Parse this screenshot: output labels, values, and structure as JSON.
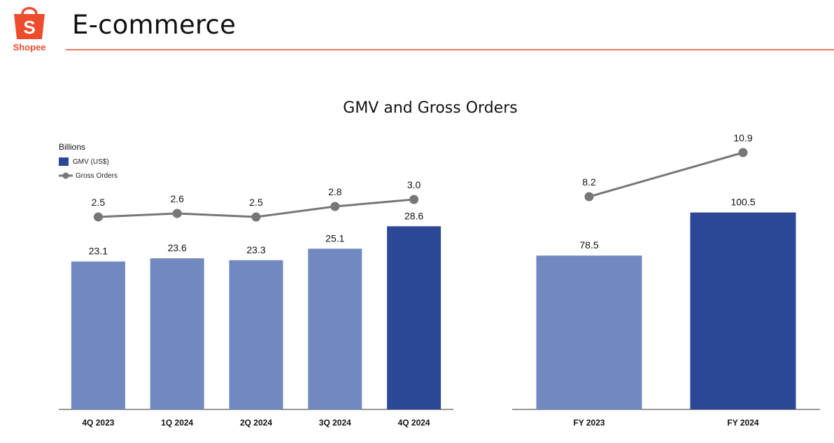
{
  "header": {
    "title": "E-commerce",
    "logo_text": "Shopee",
    "logo_glyph": "S",
    "logo_icon": "shopping-bag-icon"
  },
  "colors": {
    "brand": "#ee4d2d",
    "bar_light": "#7189c0",
    "bar_dark": "#2c4796",
    "line": "#777777",
    "rule": "#e07a5f"
  },
  "chart_data": [
    {
      "type": "bar+line",
      "title": "GMV and Gross Orders",
      "units_label": "Billions",
      "legend": [
        "GMV (US$)",
        "Gross Orders"
      ],
      "categories": [
        "4Q 2023",
        "1Q 2024",
        "2Q 2024",
        "3Q 2024",
        "4Q 2024"
      ],
      "series": [
        {
          "name": "GMV (US$)",
          "kind": "bar",
          "values": [
            23.1,
            23.6,
            23.3,
            25.1,
            28.6
          ],
          "highlight_index": 4
        },
        {
          "name": "Gross Orders",
          "kind": "line",
          "values": [
            2.5,
            2.6,
            2.5,
            2.8,
            3.0
          ]
        }
      ],
      "bar_labels": [
        "23.1",
        "23.6",
        "23.3",
        "25.1",
        "28.6"
      ],
      "line_labels": [
        "2.5",
        "2.6",
        "2.5",
        "2.8",
        "3.0"
      ],
      "ylim": [
        0,
        40
      ]
    },
    {
      "type": "bar+line",
      "categories": [
        "FY 2023",
        "FY 2024"
      ],
      "series": [
        {
          "name": "GMV (US$)",
          "kind": "bar",
          "values": [
            78.5,
            100.5
          ],
          "highlight_index": 1
        },
        {
          "name": "Gross Orders",
          "kind": "line",
          "values": [
            8.2,
            10.9
          ]
        }
      ],
      "bar_labels": [
        "78.5",
        "100.5"
      ],
      "line_labels": [
        "8.2",
        "10.9"
      ],
      "ylim": [
        0,
        140
      ]
    }
  ]
}
